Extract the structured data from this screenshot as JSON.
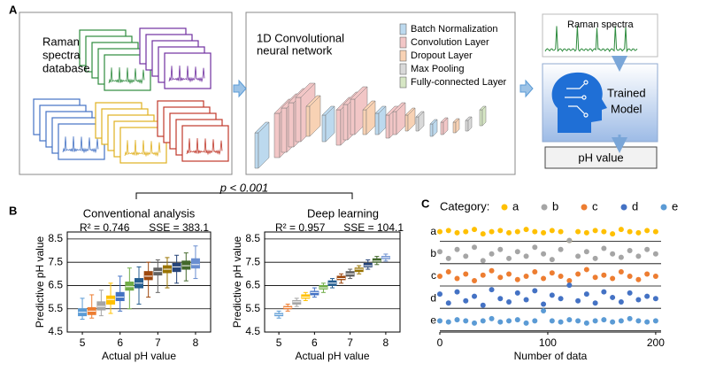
{
  "panels": [
    "A",
    "B",
    "C"
  ],
  "diagram": {
    "database_label": [
      "Raman",
      "spectra",
      "database"
    ],
    "network_label": [
      "1D Convolutional",
      "neural network"
    ],
    "layer_legend": [
      {
        "name": "Batch Normalization",
        "color": "#bcd9ee"
      },
      {
        "name": "Convolution Layer",
        "color": "#f2c6c6"
      },
      {
        "name": "Dropout Layer",
        "color": "#f8d2b4"
      },
      {
        "name": "Max Pooling",
        "color": "#d9d9d9"
      },
      {
        "name": "Fully-connected Layer",
        "color": "#d6e6c4"
      }
    ],
    "spectra_label": "Raman spectra",
    "model_label": [
      "Trained",
      "Model"
    ],
    "output_label": "pH value"
  },
  "comparison": "p < 0.001",
  "chart_data": [
    {
      "type": "box",
      "title": "Conventional analysis",
      "annotations": [
        "R² = 0.746",
        "SSE = 383.1"
      ],
      "x_label": "Actual pH value",
      "y_label": "Predictive pH value",
      "x": [
        5,
        5.25,
        5.5,
        5.75,
        6,
        6.25,
        6.5,
        6.75,
        7,
        7.25,
        7.5,
        7.75,
        8
      ],
      "colors": [
        "#5b9bd5",
        "#ed7d31",
        "#a5a5a5",
        "#ffc000",
        "#4472c4",
        "#70ad47",
        "#255e91",
        "#9e480e",
        "#636363",
        "#997300",
        "#264478",
        "#43682b",
        "#698ed0"
      ],
      "boxes": [
        {
          "min": 5.05,
          "q1": 5.2,
          "median": 5.35,
          "q3": 5.5,
          "max": 5.95
        },
        {
          "min": 5.1,
          "q1": 5.25,
          "median": 5.4,
          "q3": 5.55,
          "max": 6.1
        },
        {
          "min": 5.2,
          "q1": 5.45,
          "median": 5.6,
          "q3": 5.8,
          "max": 6.3
        },
        {
          "min": 5.3,
          "q1": 5.7,
          "median": 5.9,
          "q3": 6.05,
          "max": 6.6
        },
        {
          "min": 5.4,
          "q1": 5.85,
          "median": 6.0,
          "q3": 6.2,
          "max": 6.9
        },
        {
          "min": 5.5,
          "q1": 6.3,
          "median": 6.45,
          "q3": 6.65,
          "max": 7.25
        },
        {
          "min": 5.7,
          "q1": 6.4,
          "median": 6.6,
          "q3": 6.8,
          "max": 7.3
        },
        {
          "min": 6.0,
          "q1": 6.75,
          "median": 6.9,
          "q3": 7.1,
          "max": 7.5
        },
        {
          "min": 6.2,
          "q1": 6.95,
          "median": 7.1,
          "q3": 7.25,
          "max": 7.6
        },
        {
          "min": 6.4,
          "q1": 7.05,
          "median": 7.2,
          "q3": 7.35,
          "max": 7.7
        },
        {
          "min": 6.6,
          "q1": 7.1,
          "median": 7.3,
          "q3": 7.45,
          "max": 7.8
        },
        {
          "min": 6.7,
          "q1": 7.2,
          "median": 7.35,
          "q3": 7.55,
          "max": 7.9
        },
        {
          "min": 6.8,
          "q1": 7.25,
          "median": 7.4,
          "q3": 7.65,
          "max": 8.2
        }
      ],
      "xlim": [
        4.6,
        8.4
      ],
      "xticks": [
        5,
        6,
        7,
        8
      ],
      "ylim": [
        4.5,
        8.8
      ],
      "yticks": [
        4.5,
        5.5,
        6.5,
        7.5,
        8.5
      ],
      "grid": true
    },
    {
      "type": "box",
      "title": "Deep learning",
      "annotations": [
        "R² = 0.957",
        "SSE = 104.1"
      ],
      "x_label": "Actual pH value",
      "y_label": "Predictive pH value",
      "x": [
        5,
        5.25,
        5.5,
        5.75,
        6,
        6.25,
        6.5,
        6.75,
        7,
        7.25,
        7.5,
        7.75,
        8
      ],
      "colors": [
        "#5b9bd5",
        "#ed7d31",
        "#a5a5a5",
        "#ffc000",
        "#4472c4",
        "#70ad47",
        "#255e91",
        "#9e480e",
        "#636363",
        "#997300",
        "#264478",
        "#43682b",
        "#698ed0"
      ],
      "boxes": [
        {
          "min": 5.1,
          "q1": 5.2,
          "median": 5.25,
          "q3": 5.3,
          "max": 5.4
        },
        {
          "min": 5.4,
          "q1": 5.5,
          "median": 5.55,
          "q3": 5.6,
          "max": 5.7
        },
        {
          "min": 5.6,
          "q1": 5.7,
          "median": 5.8,
          "q3": 5.85,
          "max": 5.95
        },
        {
          "min": 5.85,
          "q1": 5.95,
          "median": 6.0,
          "q3": 6.1,
          "max": 6.2
        },
        {
          "min": 6.0,
          "q1": 6.1,
          "median": 6.2,
          "q3": 6.25,
          "max": 6.4
        },
        {
          "min": 6.2,
          "q1": 6.35,
          "median": 6.4,
          "q3": 6.5,
          "max": 6.6
        },
        {
          "min": 6.4,
          "q1": 6.5,
          "median": 6.6,
          "q3": 6.7,
          "max": 6.8
        },
        {
          "min": 6.6,
          "q1": 6.75,
          "median": 6.8,
          "q3": 6.9,
          "max": 7.0
        },
        {
          "min": 6.8,
          "q1": 6.9,
          "median": 7.0,
          "q3": 7.1,
          "max": 7.2
        },
        {
          "min": 7.0,
          "q1": 7.1,
          "median": 7.2,
          "q3": 7.25,
          "max": 7.35
        },
        {
          "min": 7.2,
          "q1": 7.3,
          "median": 7.35,
          "q3": 7.45,
          "max": 7.6
        },
        {
          "min": 7.4,
          "q1": 7.5,
          "median": 7.55,
          "q3": 7.65,
          "max": 7.75
        },
        {
          "min": 7.55,
          "q1": 7.65,
          "median": 7.7,
          "q3": 7.75,
          "max": 7.85
        }
      ],
      "xlim": [
        4.6,
        8.4
      ],
      "xticks": [
        5,
        6,
        7,
        8
      ],
      "ylim": [
        4.5,
        8.8
      ],
      "yticks": [
        4.5,
        5.5,
        6.5,
        7.5,
        8.5
      ],
      "grid": true
    },
    {
      "type": "scatter",
      "legend_title": "Category:",
      "x_label": "Number of data",
      "x": [
        0,
        8,
        16,
        24,
        32,
        40,
        48,
        56,
        64,
        72,
        80,
        88,
        96,
        104,
        112,
        120,
        128,
        136,
        144,
        152,
        160,
        168,
        176,
        184,
        192,
        200
      ],
      "series": [
        {
          "name": "a",
          "color": "#ffc000",
          "values": [
            5.0,
            5.05,
            4.95,
            5.0,
            5.1,
            4.9,
            5.0,
            5.05,
            4.95,
            5.0,
            5.1,
            5.0,
            4.95,
            5.05,
            5.0,
            4.6,
            5.0,
            4.95,
            5.05,
            5.0,
            4.9,
            5.1,
            5.0,
            4.95,
            5.05,
            5.0
          ]
        },
        {
          "name": "b",
          "color": "#a5a5a5",
          "values": [
            4.1,
            3.8,
            4.2,
            3.9,
            4.3,
            3.7,
            4.0,
            4.2,
            3.8,
            4.1,
            3.9,
            4.3,
            4.0,
            3.75,
            4.2,
            4.6,
            3.9,
            4.1,
            3.8,
            4.25,
            4.0,
            3.85,
            4.15,
            3.9,
            4.2,
            4.0
          ]
        },
        {
          "name": "c",
          "color": "#ed7d31",
          "values": [
            3.0,
            3.2,
            2.9,
            3.1,
            2.8,
            3.05,
            3.25,
            2.95,
            3.1,
            2.85,
            3.0,
            3.2,
            2.9,
            3.15,
            3.0,
            2.8,
            3.1,
            3.3,
            2.95,
            3.05,
            2.9,
            3.2,
            3.0,
            2.85,
            3.1,
            3.0
          ]
        },
        {
          "name": "d",
          "color": "#4472c4",
          "values": [
            2.2,
            1.8,
            2.3,
            1.9,
            2.1,
            1.7,
            2.4,
            2.0,
            1.85,
            2.25,
            1.95,
            2.35,
            1.75,
            2.15,
            2.0,
            2.6,
            1.9,
            2.2,
            1.8,
            2.3,
            2.05,
            1.85,
            2.25,
            1.95,
            2.1,
            2.0
          ]
        },
        {
          "name": "e",
          "color": "#5b9bd5",
          "values": [
            1.0,
            0.95,
            1.05,
            1.0,
            0.9,
            1.0,
            1.1,
            0.95,
            1.0,
            1.05,
            0.9,
            1.0,
            1.45,
            1.0,
            0.95,
            1.05,
            1.0,
            0.9,
            1.0,
            1.05,
            0.95,
            1.0,
            1.1,
            1.0,
            0.95,
            1.0
          ]
        }
      ],
      "xlim": [
        0,
        205
      ],
      "xticks": [
        0,
        100,
        200
      ],
      "ylim": [
        0.5,
        5.5
      ],
      "yticks": [
        {
          "value": 5,
          "label": "a"
        },
        {
          "value": 4,
          "label": "b"
        },
        {
          "value": 3,
          "label": "c"
        },
        {
          "value": 2,
          "label": "d"
        },
        {
          "value": 1,
          "label": "e"
        }
      ],
      "grid": true
    }
  ]
}
